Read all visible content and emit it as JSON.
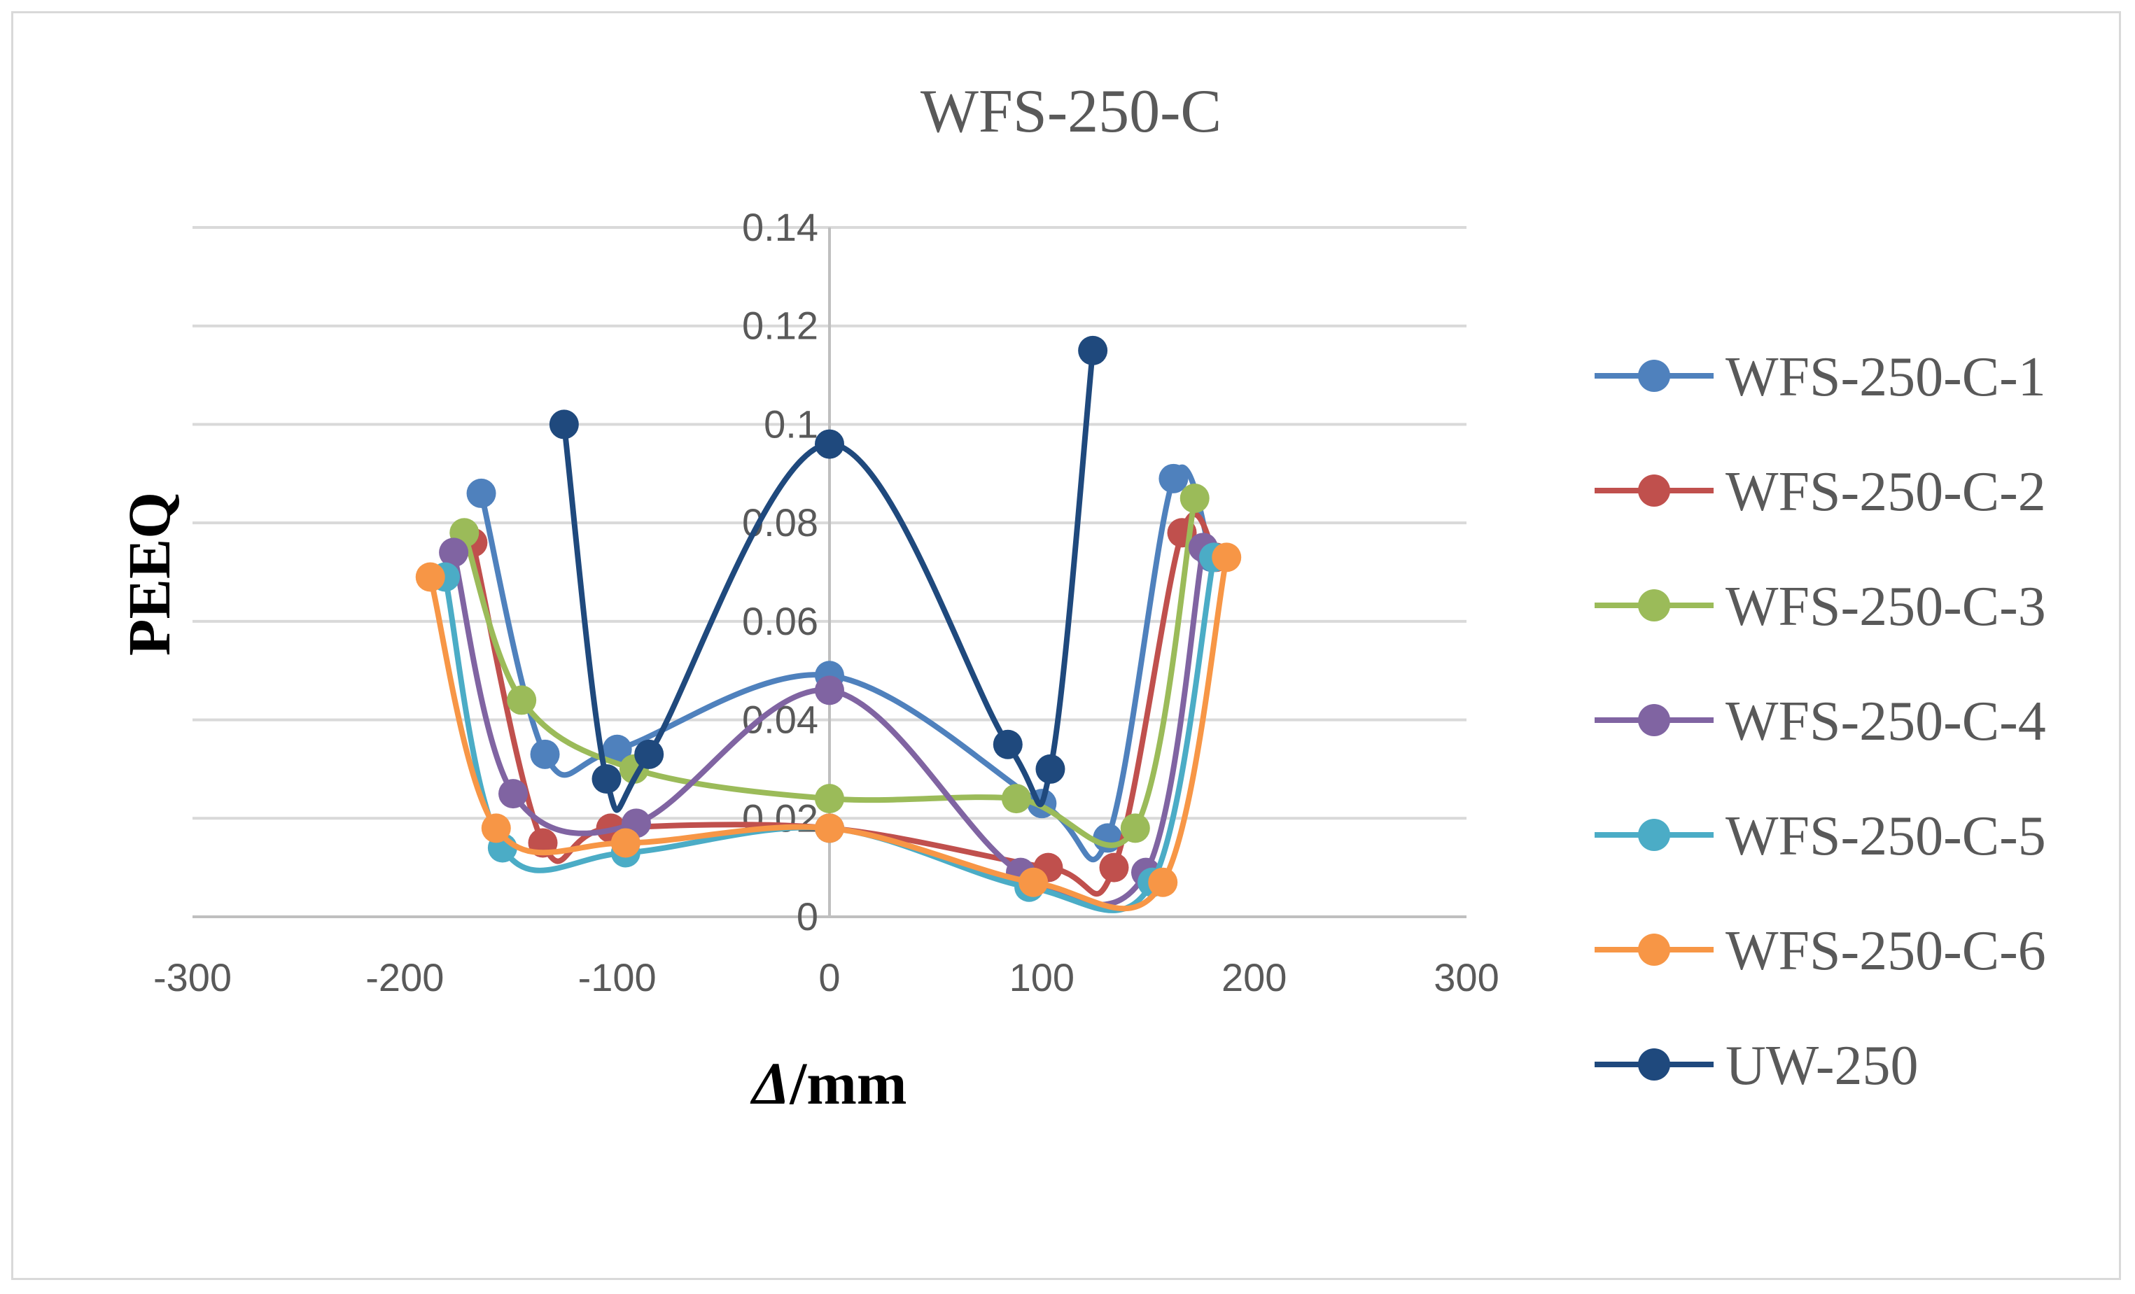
{
  "chart_data": {
    "type": "line",
    "title": "WFS-250-C",
    "xlabel_italic": "Δ",
    "xlabel_rest": "/mm",
    "ylabel": "PEEQ",
    "xlim": [
      -300,
      300
    ],
    "ylim": [
      0,
      0.14
    ],
    "x_ticks": [
      "-300",
      "-200",
      "-100",
      "0",
      "100",
      "200",
      "300"
    ],
    "y_ticks": [
      "0",
      "0.02",
      "0.04",
      "0.06",
      "0.08",
      "0.1",
      "0.12",
      "0.14"
    ],
    "y_tick_values": [
      0,
      0.02,
      0.04,
      0.06,
      0.08,
      0.1,
      0.12,
      0.14
    ],
    "x_tick_values": [
      -300,
      -200,
      -100,
      0,
      100,
      200,
      300
    ],
    "grid": true,
    "legend_position": "right",
    "series": [
      {
        "name": "WFS-250-C-1",
        "color": "#4f81bd",
        "x": [
          -164,
          -134,
          -100,
          0,
          100,
          131,
          162,
          180
        ],
        "y": [
          0.086,
          0.033,
          0.034,
          0.049,
          0.023,
          0.016,
          0.089,
          0.073
        ]
      },
      {
        "name": "WFS-250-C-2",
        "color": "#c0504d",
        "x": [
          -168,
          -135,
          -103,
          0,
          103,
          134,
          166,
          182
        ],
        "y": [
          0.076,
          0.015,
          0.018,
          0.018,
          0.01,
          0.01,
          0.078,
          0.073
        ]
      },
      {
        "name": "WFS-250-C-3",
        "color": "#9bbb59",
        "x": [
          -172,
          -145,
          -92,
          0,
          88,
          144,
          172
        ],
        "y": [
          0.078,
          0.044,
          0.03,
          0.024,
          0.024,
          0.018,
          0.085
        ]
      },
      {
        "name": "WFS-250-C-4",
        "color": "#8064a2",
        "x": [
          -177,
          -149,
          -91,
          0,
          90,
          149,
          176
        ],
        "y": [
          0.074,
          0.025,
          0.019,
          0.046,
          0.009,
          0.009,
          0.075
        ]
      },
      {
        "name": "WFS-250-C-5",
        "color": "#4bacc6",
        "x": [
          -181,
          -154,
          -96,
          0,
          94,
          152,
          181
        ],
        "y": [
          0.069,
          0.014,
          0.013,
          0.018,
          0.006,
          0.007,
          0.073
        ]
      },
      {
        "name": "WFS-250-C-6",
        "color": "#f79646",
        "x": [
          -188,
          -157,
          -96,
          0,
          96,
          157,
          187
        ],
        "y": [
          0.069,
          0.018,
          0.015,
          0.018,
          0.007,
          0.007,
          0.073
        ]
      },
      {
        "name": "UW-250",
        "color": "#1f497d",
        "x": [
          -125,
          -105,
          -85,
          0,
          84,
          104,
          124
        ],
        "y": [
          0.1,
          0.028,
          0.033,
          0.096,
          0.035,
          0.03,
          0.115
        ]
      }
    ]
  }
}
